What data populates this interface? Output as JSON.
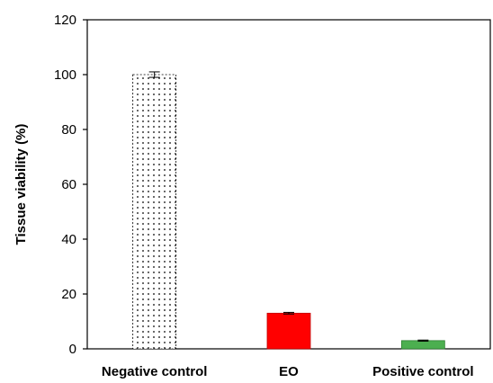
{
  "chart_data": {
    "type": "bar",
    "categories": [
      "Negative control",
      "EO",
      "Positive control"
    ],
    "values": [
      100,
      13,
      3
    ],
    "errors": [
      1,
      0.3,
      0.2
    ],
    "title": "",
    "xlabel": "",
    "ylabel": "Tissue viability (%)",
    "ylim": [
      0,
      120
    ],
    "yticks": [
      0,
      20,
      40,
      60,
      80,
      100,
      120
    ],
    "ytick_labels": [
      "0",
      "20",
      "40",
      "60",
      "80",
      "100",
      "120"
    ],
    "grid": false,
    "legend": "none",
    "bar_styles": [
      {
        "fill": "#ffffff",
        "pattern": "dotted",
        "stroke": "#000000"
      },
      {
        "fill": "#ff0000",
        "pattern": "none",
        "stroke": "#c00000"
      },
      {
        "fill": "#4caf50",
        "pattern": "none",
        "stroke": "#2e7d32"
      }
    ]
  }
}
